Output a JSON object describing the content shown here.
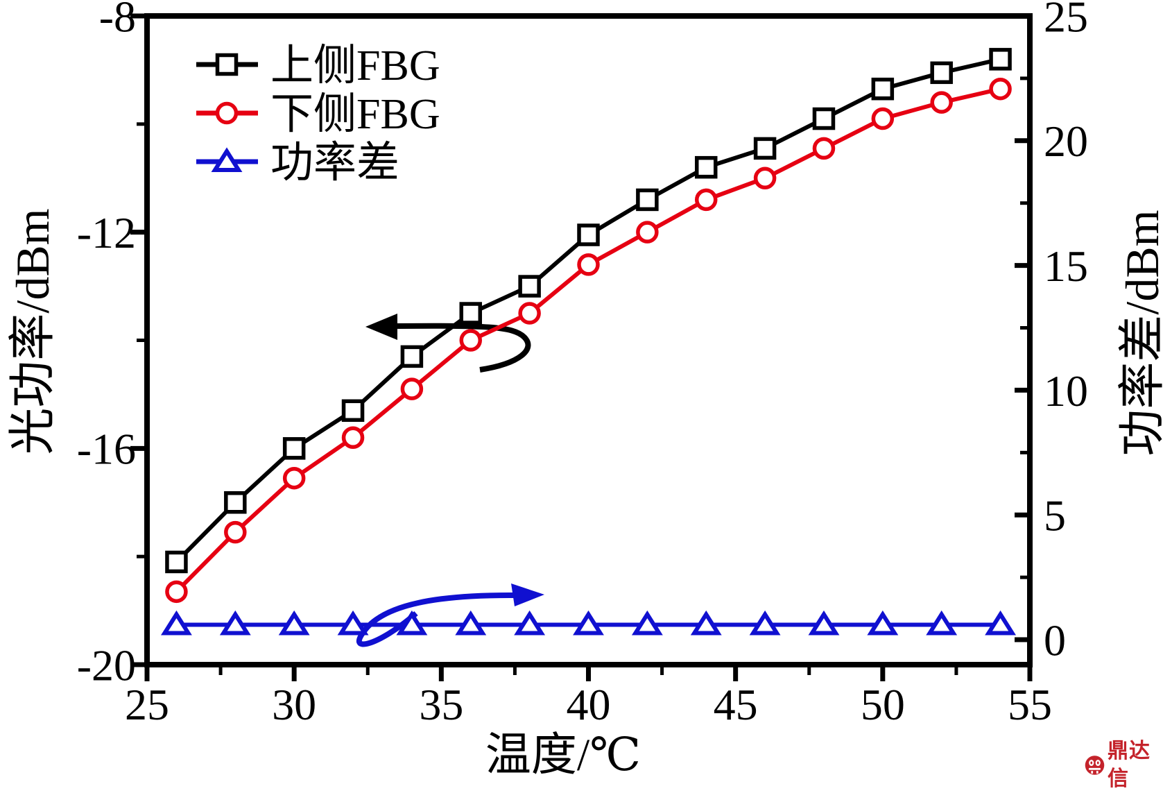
{
  "figure": {
    "background": "#ffffff"
  },
  "watermark": {
    "text": "鼎达信",
    "color": "#c4232b",
    "logo": "dingdaxin-circle-logo"
  },
  "chart_data": {
    "type": "line",
    "x": [
      26,
      28,
      30,
      32,
      34,
      36,
      38,
      40,
      42,
      44,
      46,
      48,
      50,
      52,
      54
    ],
    "series": [
      {
        "name": "上侧FBG",
        "axis": "left",
        "color": "#000000",
        "marker": "square",
        "values": [
          -18.1,
          -17.0,
          -16.0,
          -15.3,
          -14.3,
          -13.5,
          -13.0,
          -12.05,
          -11.4,
          -10.8,
          -10.45,
          -9.9,
          -9.35,
          -9.05,
          -8.8
        ]
      },
      {
        "name": "下侧FBG",
        "axis": "left",
        "color": "#e60012",
        "marker": "circle",
        "values": [
          -18.65,
          -17.55,
          -16.55,
          -15.8,
          -14.9,
          -14.0,
          -13.5,
          -12.6,
          -12.0,
          -11.4,
          -11.0,
          -10.45,
          -9.9,
          -9.6,
          -9.35
        ]
      },
      {
        "name": "功率差",
        "axis": "right",
        "color": "#1010d0",
        "marker": "triangle",
        "values": [
          0.6,
          0.6,
          0.6,
          0.6,
          0.6,
          0.6,
          0.6,
          0.6,
          0.6,
          0.6,
          0.6,
          0.6,
          0.6,
          0.6,
          0.6
        ]
      }
    ],
    "xlabel": "温度/℃",
    "ylabel_left": "光功率/dBm",
    "ylabel_right": "功率差/dBm",
    "xlim": [
      25,
      55
    ],
    "ylim_left": [
      -20,
      -8
    ],
    "ylim_right": [
      -1,
      25
    ],
    "xticks": [
      25,
      30,
      35,
      40,
      45,
      50,
      55
    ],
    "xticks_minor": [
      27.5,
      32.5,
      37.5,
      42.5,
      47.5,
      52.5
    ],
    "yticks_left": [
      -8,
      -12,
      -16,
      -20
    ],
    "yticks_left_minor": [
      -10,
      -14,
      -18
    ],
    "yticks_right": [
      25,
      20,
      15,
      10,
      5,
      0
    ],
    "yticks_right_minor": [
      22.5,
      17.5,
      12.5,
      7.5,
      2.5
    ],
    "grid": false,
    "legend_position": "inside-top-left",
    "annotations": [
      {
        "type": "curved-arrow",
        "points_to": "left-axis",
        "applies_to": "上侧FBG / 下侧FBG",
        "color": "#000000"
      },
      {
        "type": "curved-arrow",
        "points_to": "right-axis",
        "applies_to": "功率差",
        "color": "#1010d0"
      }
    ]
  }
}
